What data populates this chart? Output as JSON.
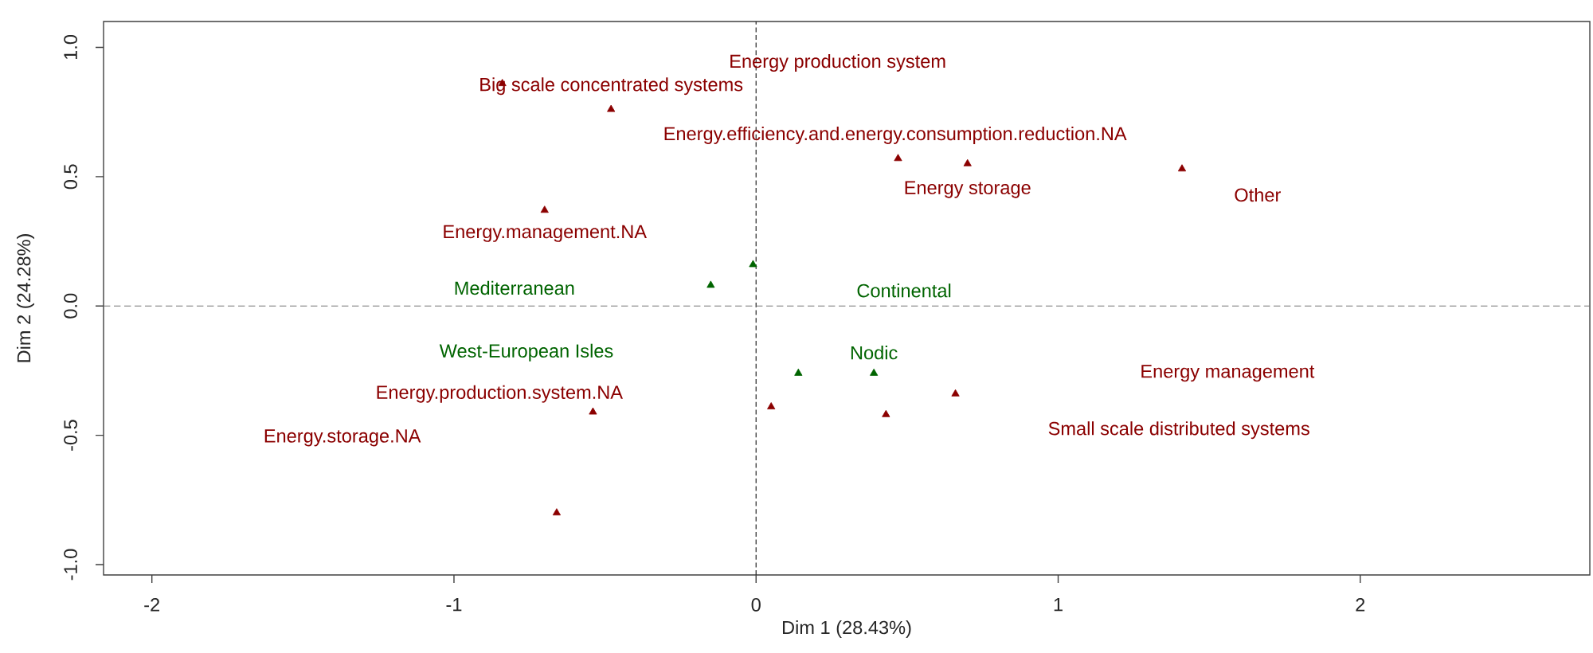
{
  "chart_data": {
    "type": "scatter",
    "xlabel": "Dim 1 (28.43%)",
    "ylabel": "Dim 2 (24.28%)",
    "xlim": [
      -2.16,
      2.76
    ],
    "ylim": [
      -1.04,
      1.1
    ],
    "xticks": [
      -2,
      -1,
      0,
      1,
      2
    ],
    "yticks": [
      {
        "value": -1,
        "label": "-1.0"
      },
      -0.5,
      {
        "value": 0,
        "label": "0.0"
      },
      0.5,
      {
        "value": 1,
        "label": "1.0"
      }
    ],
    "marker": "triangle",
    "series": [
      {
        "color": "#8b0000",
        "x": [
          -0.84,
          -0.48,
          -0.7,
          0.47,
          0.7,
          1.41,
          0.05,
          -0.54,
          -0.66,
          0.66,
          0.43
        ],
        "values": [
          0.86,
          0.76,
          0.37,
          0.57,
          0.55,
          0.53,
          -0.39,
          -0.41,
          -0.8,
          -0.34,
          -0.42
        ]
      },
      {
        "color": "#006400",
        "x": [
          -0.01,
          -0.15,
          0.14,
          0.39
        ],
        "values": [
          0.16,
          0.08,
          -0.26,
          -0.26
        ]
      }
    ],
    "ref_lines": [
      {
        "axis": "x",
        "value": 0,
        "line_style": "dashed"
      },
      {
        "axis": "y",
        "value": 0,
        "line_style": "dashed"
      }
    ],
    "annotations": [
      "Energy production system",
      "Big scale concentrated systems",
      "Energy.efficiency.and.energy.consumption.reduction.NA",
      "Energy storage",
      "Other",
      "Energy.management.NA",
      "Mediterranean",
      "Continental",
      "West-European Isles",
      "Energy.production.system.NA",
      "Energy.storage.NA",
      "Nodic",
      "Energy management",
      "Small scale distributed systems"
    ]
  }
}
